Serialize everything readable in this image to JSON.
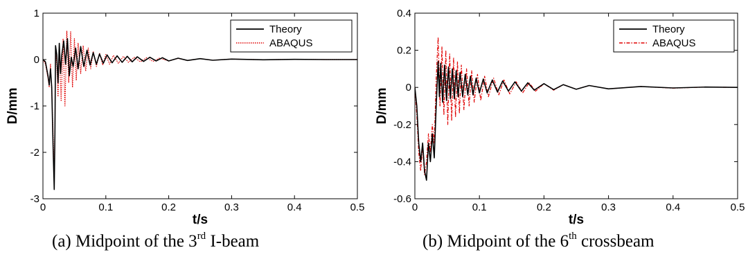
{
  "chart_data": [
    {
      "type": "line",
      "xlabel": "t/s",
      "ylabel": "D/mm",
      "xlim": [
        0,
        0.5
      ],
      "ylim": [
        -3,
        1
      ],
      "xticks": [
        "0",
        "0.1",
        "0.2",
        "0.3",
        "0.4",
        "0.5"
      ],
      "yticks": [
        "-3",
        "-2",
        "-1",
        "0",
        "1"
      ],
      "legend_position": "top-right",
      "grid": false,
      "series": [
        {
          "name": "Theory",
          "color": "#000000",
          "style": "solid",
          "x": [
            0,
            0.004,
            0.008,
            0.01,
            0.012,
            0.014,
            0.016,
            0.018,
            0.019,
            0.02,
            0.022,
            0.024,
            0.026,
            0.028,
            0.03,
            0.033,
            0.036,
            0.039,
            0.042,
            0.045,
            0.048,
            0.052,
            0.056,
            0.06,
            0.065,
            0.07,
            0.075,
            0.08,
            0.085,
            0.09,
            0.096,
            0.102,
            0.11,
            0.118,
            0.126,
            0.134,
            0.142,
            0.15,
            0.16,
            0.17,
            0.18,
            0.19,
            0.2,
            0.215,
            0.23,
            0.25,
            0.27,
            0.3,
            0.35,
            0.4,
            0.45,
            0.5
          ],
          "y": [
            0,
            -0.05,
            -0.35,
            -0.55,
            -0.2,
            -0.6,
            -1.8,
            -2.8,
            -1.6,
            0.3,
            0.1,
            -0.5,
            0.35,
            -0.3,
            0.1,
            0.4,
            -0.1,
            0.45,
            -0.35,
            0.05,
            -0.15,
            0.25,
            -0.2,
            0.28,
            -0.15,
            0.2,
            -0.12,
            0.15,
            -0.1,
            0.12,
            -0.08,
            0.1,
            -0.07,
            0.08,
            -0.06,
            0.07,
            -0.05,
            0.06,
            -0.04,
            0.05,
            -0.03,
            0.04,
            -0.03,
            0.03,
            -0.02,
            0.02,
            -0.015,
            0.01,
            -0.005,
            0.005,
            0,
            0
          ]
        },
        {
          "name": "ABAQUS",
          "color": "#e00000",
          "style": "dotted",
          "x": [
            0,
            0.004,
            0.008,
            0.01,
            0.012,
            0.014,
            0.016,
            0.018,
            0.019,
            0.02,
            0.022,
            0.024,
            0.026,
            0.029,
            0.032,
            0.035,
            0.038,
            0.041,
            0.044,
            0.047,
            0.05,
            0.053,
            0.056,
            0.06,
            0.064,
            0.068,
            0.072,
            0.076,
            0.08,
            0.085,
            0.09,
            0.095,
            0.1,
            0.106,
            0.112,
            0.12,
            0.128,
            0.136,
            0.145,
            0.155,
            0.165,
            0.175,
            0.185,
            0.2,
            0.215,
            0.23,
            0.25,
            0.27,
            0.3,
            0.35,
            0.4,
            0.45,
            0.5
          ],
          "y": [
            0,
            -0.1,
            -0.4,
            -0.6,
            -0.1,
            -0.7,
            -1.5,
            -2.6,
            -1.7,
            0.2,
            -0.1,
            -0.8,
            0.2,
            -0.9,
            0.45,
            -1.0,
            0.62,
            -0.5,
            0.6,
            -0.6,
            0.45,
            -0.45,
            0.35,
            -0.3,
            0.3,
            -0.25,
            0.25,
            -0.2,
            0.18,
            -0.15,
            0.14,
            -0.12,
            0.11,
            -0.1,
            0.09,
            -0.08,
            0.07,
            -0.06,
            0.05,
            -0.05,
            0.04,
            -0.04,
            0.03,
            -0.03,
            0.025,
            -0.02,
            0.02,
            -0.015,
            0.01,
            -0.005,
            0.005,
            0,
            0
          ]
        }
      ]
    },
    {
      "type": "line",
      "xlabel": "t/s",
      "ylabel": "D/mm",
      "xlim": [
        0,
        0.5
      ],
      "ylim": [
        -0.6,
        0.4
      ],
      "xticks": [
        "0",
        "0.1",
        "0.2",
        "0.3",
        "0.4",
        "0.5"
      ],
      "yticks": [
        "-0.6",
        "-0.4",
        "-0.2",
        "0",
        "0.2",
        "0.4"
      ],
      "legend_position": "top-right",
      "grid": false,
      "series": [
        {
          "name": "Theory",
          "color": "#000000",
          "style": "solid",
          "x": [
            0,
            0.003,
            0.006,
            0.009,
            0.012,
            0.015,
            0.018,
            0.021,
            0.024,
            0.027,
            0.03,
            0.033,
            0.036,
            0.038,
            0.04,
            0.043,
            0.046,
            0.049,
            0.052,
            0.055,
            0.058,
            0.061,
            0.064,
            0.067,
            0.07,
            0.074,
            0.078,
            0.082,
            0.086,
            0.09,
            0.095,
            0.1,
            0.106,
            0.112,
            0.12,
            0.128,
            0.136,
            0.145,
            0.155,
            0.165,
            0.175,
            0.185,
            0.2,
            0.215,
            0.23,
            0.25,
            0.27,
            0.3,
            0.35,
            0.4,
            0.45,
            0.5
          ],
          "y": [
            0,
            -0.1,
            -0.3,
            -0.4,
            -0.3,
            -0.45,
            -0.5,
            -0.3,
            -0.4,
            -0.25,
            -0.38,
            -0.1,
            0.14,
            -0.05,
            0.13,
            -0.08,
            0.12,
            -0.07,
            0.11,
            -0.06,
            0.1,
            -0.06,
            0.09,
            -0.05,
            0.08,
            -0.05,
            0.07,
            -0.04,
            0.06,
            -0.04,
            0.05,
            -0.03,
            0.045,
            -0.03,
            0.04,
            -0.025,
            0.035,
            -0.02,
            0.03,
            -0.02,
            0.025,
            -0.015,
            0.02,
            -0.012,
            0.015,
            -0.01,
            0.01,
            -0.008,
            0.005,
            -0.003,
            0.002,
            0
          ]
        },
        {
          "name": "ABAQUS",
          "color": "#e00000",
          "style": "dash-dot",
          "x": [
            0,
            0.003,
            0.006,
            0.009,
            0.012,
            0.015,
            0.018,
            0.021,
            0.024,
            0.027,
            0.03,
            0.033,
            0.036,
            0.039,
            0.042,
            0.045,
            0.048,
            0.051,
            0.054,
            0.057,
            0.06,
            0.063,
            0.066,
            0.069,
            0.072,
            0.076,
            0.08,
            0.084,
            0.088,
            0.092,
            0.097,
            0.102,
            0.108,
            0.114,
            0.122,
            0.13,
            0.138,
            0.147,
            0.157,
            0.167,
            0.177,
            0.187,
            0.2,
            0.215,
            0.23,
            0.25,
            0.27,
            0.3,
            0.35,
            0.4,
            0.45,
            0.5
          ],
          "y": [
            0,
            -0.15,
            -0.35,
            -0.45,
            -0.32,
            -0.47,
            -0.4,
            -0.25,
            -0.35,
            -0.2,
            -0.3,
            0.05,
            0.27,
            -0.1,
            0.22,
            -0.15,
            0.2,
            -0.2,
            0.18,
            -0.18,
            0.16,
            -0.16,
            0.14,
            -0.14,
            0.12,
            -0.12,
            0.1,
            -0.1,
            0.09,
            -0.08,
            0.07,
            -0.07,
            0.06,
            -0.05,
            0.05,
            -0.04,
            0.04,
            -0.035,
            0.03,
            -0.03,
            0.025,
            -0.02,
            0.02,
            -0.015,
            0.015,
            -0.01,
            0.01,
            -0.008,
            0.005,
            -0.004,
            0.002,
            0
          ]
        }
      ]
    }
  ],
  "captions": {
    "a": {
      "before": "(a) Midpoint of the 3",
      "sup": "rd",
      "after": " I-beam"
    },
    "b": {
      "before": "(b) Midpoint of the 6",
      "sup": "th",
      "after": " crossbeam"
    }
  }
}
